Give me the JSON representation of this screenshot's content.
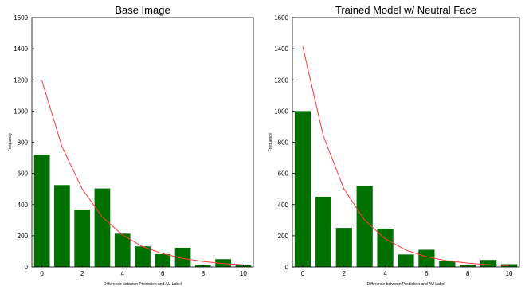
{
  "chart_data": [
    {
      "type": "bar",
      "title": "Base Image",
      "xlabel": "Difference between Prediction and AU Label",
      "ylabel": "Frequency",
      "ylim": [
        0,
        1600
      ],
      "xlim": [
        -0.5,
        10.5
      ],
      "x_ticks": [
        "0",
        "2",
        "4",
        "6",
        "8",
        "10"
      ],
      "y_ticks": [
        "0",
        "200",
        "400",
        "600",
        "800",
        "1000",
        "1200",
        "1400",
        "1600"
      ],
      "grid": false,
      "series": [
        {
          "type": "bar",
          "color": "#007000",
          "x": [
            0,
            1,
            2,
            3,
            4,
            5,
            6,
            7,
            8,
            9,
            10
          ],
          "values": [
            720,
            525,
            368,
            503,
            213,
            132,
            82,
            123,
            15,
            50,
            10
          ]
        },
        {
          "type": "line",
          "color": "#ff3b3b",
          "x": [
            0,
            1,
            2,
            3,
            4,
            5,
            6,
            7,
            8,
            9,
            10
          ],
          "values": [
            1195,
            770,
            500,
            320,
            205,
            130,
            85,
            55,
            35,
            22,
            14
          ]
        }
      ]
    },
    {
      "type": "bar",
      "title": "Trained Model w/ Neutral Face",
      "xlabel": "Difference between Prediction and AU Label",
      "ylabel": "Frequency",
      "ylim": [
        0,
        1600
      ],
      "xlim": [
        -0.5,
        10.5
      ],
      "x_ticks": [
        "0",
        "2",
        "4",
        "6",
        "8",
        "10"
      ],
      "y_ticks": [
        "0",
        "200",
        "400",
        "600",
        "800",
        "1000",
        "1200",
        "1400",
        "1600"
      ],
      "grid": false,
      "series": [
        {
          "type": "bar",
          "color": "#007000",
          "x": [
            0,
            1,
            2,
            3,
            4,
            5,
            6,
            7,
            8,
            9,
            10
          ],
          "values": [
            1000,
            450,
            250,
            520,
            245,
            80,
            110,
            40,
            15,
            45,
            18
          ]
        },
        {
          "type": "line",
          "color": "#ff3b3b",
          "x": [
            0,
            1,
            2,
            3,
            4,
            5,
            6,
            7,
            8,
            9,
            10
          ],
          "values": [
            1415,
            840,
            500,
            300,
            180,
            108,
            65,
            40,
            25,
            15,
            9
          ]
        }
      ]
    }
  ]
}
